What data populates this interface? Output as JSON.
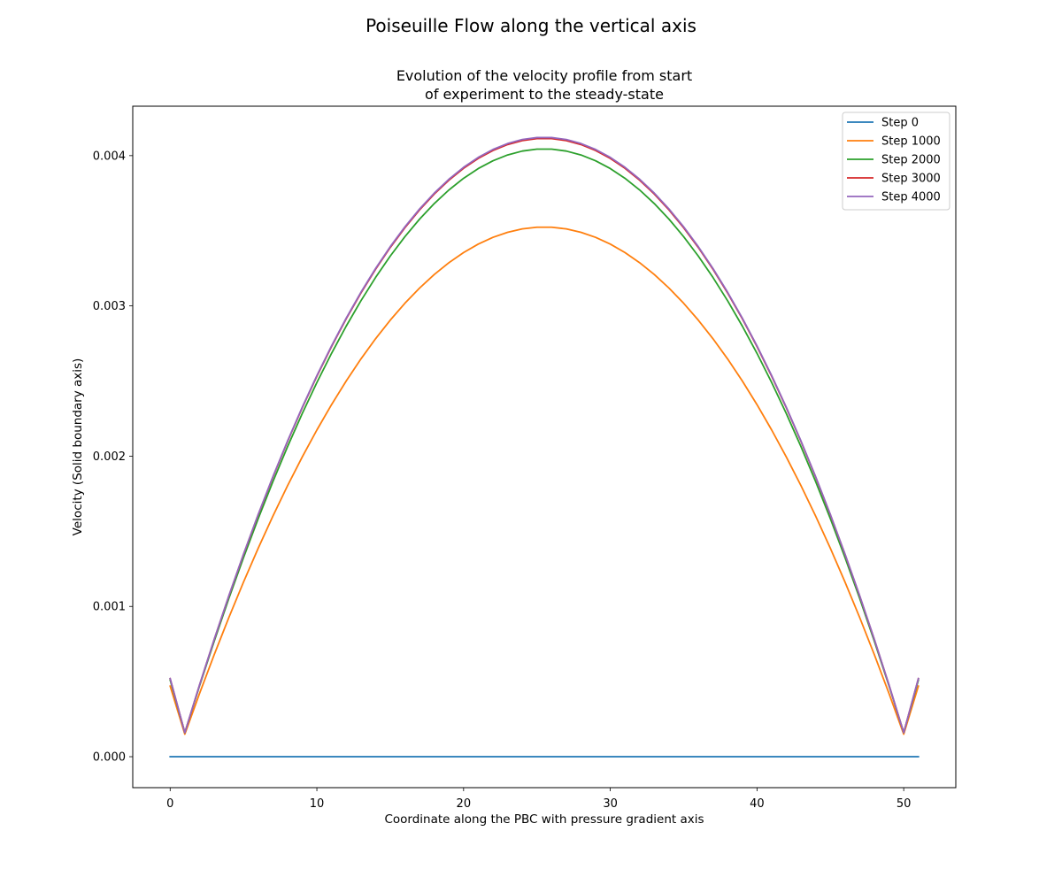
{
  "figure": {
    "suptitle": "Poiseuille Flow along the vertical axis"
  },
  "chart_data": {
    "type": "line",
    "title_lines": [
      "Evolution of the velocity profile from start",
      "of experiment to the steady-state"
    ],
    "xlabel": "Coordinate along the PBC with pressure gradient axis",
    "ylabel": "Velocity (Solid boundary axis)",
    "xlim": [
      -2.55,
      53.55
    ],
    "ylim": [
      -0.000206,
      0.004329
    ],
    "xticks": [
      0,
      10,
      20,
      30,
      40,
      50
    ],
    "yticks": [
      0.0,
      0.001,
      0.002,
      0.003,
      0.004
    ],
    "xtick_labels": [
      "0",
      "10",
      "20",
      "30",
      "40",
      "50"
    ],
    "ytick_labels": [
      "0.000",
      "0.001",
      "0.002",
      "0.003",
      "0.004"
    ],
    "grid": false,
    "legend_position": "top-right",
    "profile": {
      "x_start": 0,
      "x_end": 51,
      "wall_nodes": [
        1,
        50
      ],
      "center": 25.5
    },
    "series": [
      {
        "name": "Step 0",
        "color": "#1f77b4",
        "edge_value": 0.0,
        "wall_value": 0.0,
        "peak_value": 0.0
      },
      {
        "name": "Step 1000",
        "color": "#ff7f0e",
        "edge_value": 0.00047,
        "wall_value": 0.00015,
        "peak_value": 0.003525
      },
      {
        "name": "Step 2000",
        "color": "#2ca02c",
        "edge_value": 0.00051,
        "wall_value": 0.00016,
        "peak_value": 0.004045
      },
      {
        "name": "Step 3000",
        "color": "#d62728",
        "edge_value": 0.00052,
        "wall_value": 0.00016,
        "peak_value": 0.004115
      },
      {
        "name": "Step 4000",
        "color": "#9467bd",
        "edge_value": 0.00052,
        "wall_value": 0.00016,
        "peak_value": 0.004122
      }
    ]
  }
}
